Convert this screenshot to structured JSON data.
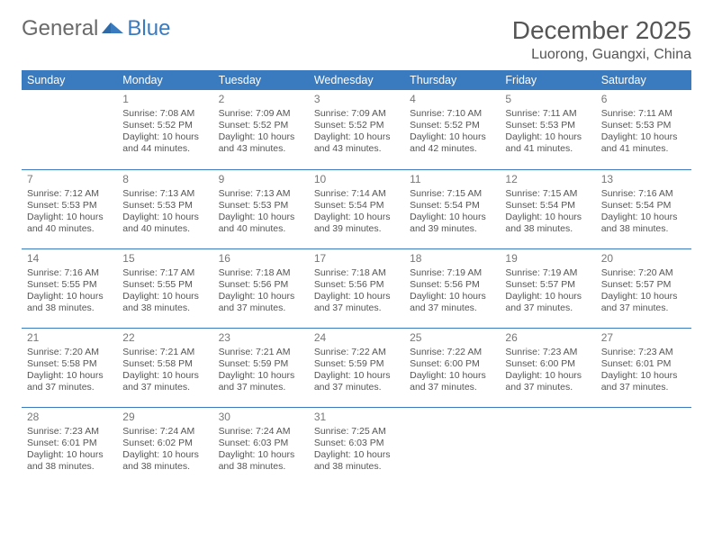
{
  "brand": {
    "part1": "General",
    "part2": "Blue"
  },
  "title": "December 2025",
  "location": "Luorong, Guangxi, China",
  "colors": {
    "header_bg": "#3a7bbf",
    "header_text": "#ffffff",
    "page_bg": "#ffffff",
    "text": "#555555",
    "daynum": "#777777",
    "separator": "#3a7bbf"
  },
  "weekdays": [
    "Sunday",
    "Monday",
    "Tuesday",
    "Wednesday",
    "Thursday",
    "Friday",
    "Saturday"
  ],
  "weeks": [
    [
      null,
      {
        "d": "1",
        "sr": "Sunrise: 7:08 AM",
        "ss": "Sunset: 5:52 PM",
        "dl1": "Daylight: 10 hours",
        "dl2": "and 44 minutes."
      },
      {
        "d": "2",
        "sr": "Sunrise: 7:09 AM",
        "ss": "Sunset: 5:52 PM",
        "dl1": "Daylight: 10 hours",
        "dl2": "and 43 minutes."
      },
      {
        "d": "3",
        "sr": "Sunrise: 7:09 AM",
        "ss": "Sunset: 5:52 PM",
        "dl1": "Daylight: 10 hours",
        "dl2": "and 43 minutes."
      },
      {
        "d": "4",
        "sr": "Sunrise: 7:10 AM",
        "ss": "Sunset: 5:52 PM",
        "dl1": "Daylight: 10 hours",
        "dl2": "and 42 minutes."
      },
      {
        "d": "5",
        "sr": "Sunrise: 7:11 AM",
        "ss": "Sunset: 5:53 PM",
        "dl1": "Daylight: 10 hours",
        "dl2": "and 41 minutes."
      },
      {
        "d": "6",
        "sr": "Sunrise: 7:11 AM",
        "ss": "Sunset: 5:53 PM",
        "dl1": "Daylight: 10 hours",
        "dl2": "and 41 minutes."
      }
    ],
    [
      {
        "d": "7",
        "sr": "Sunrise: 7:12 AM",
        "ss": "Sunset: 5:53 PM",
        "dl1": "Daylight: 10 hours",
        "dl2": "and 40 minutes."
      },
      {
        "d": "8",
        "sr": "Sunrise: 7:13 AM",
        "ss": "Sunset: 5:53 PM",
        "dl1": "Daylight: 10 hours",
        "dl2": "and 40 minutes."
      },
      {
        "d": "9",
        "sr": "Sunrise: 7:13 AM",
        "ss": "Sunset: 5:53 PM",
        "dl1": "Daylight: 10 hours",
        "dl2": "and 40 minutes."
      },
      {
        "d": "10",
        "sr": "Sunrise: 7:14 AM",
        "ss": "Sunset: 5:54 PM",
        "dl1": "Daylight: 10 hours",
        "dl2": "and 39 minutes."
      },
      {
        "d": "11",
        "sr": "Sunrise: 7:15 AM",
        "ss": "Sunset: 5:54 PM",
        "dl1": "Daylight: 10 hours",
        "dl2": "and 39 minutes."
      },
      {
        "d": "12",
        "sr": "Sunrise: 7:15 AM",
        "ss": "Sunset: 5:54 PM",
        "dl1": "Daylight: 10 hours",
        "dl2": "and 38 minutes."
      },
      {
        "d": "13",
        "sr": "Sunrise: 7:16 AM",
        "ss": "Sunset: 5:54 PM",
        "dl1": "Daylight: 10 hours",
        "dl2": "and 38 minutes."
      }
    ],
    [
      {
        "d": "14",
        "sr": "Sunrise: 7:16 AM",
        "ss": "Sunset: 5:55 PM",
        "dl1": "Daylight: 10 hours",
        "dl2": "and 38 minutes."
      },
      {
        "d": "15",
        "sr": "Sunrise: 7:17 AM",
        "ss": "Sunset: 5:55 PM",
        "dl1": "Daylight: 10 hours",
        "dl2": "and 38 minutes."
      },
      {
        "d": "16",
        "sr": "Sunrise: 7:18 AM",
        "ss": "Sunset: 5:56 PM",
        "dl1": "Daylight: 10 hours",
        "dl2": "and 37 minutes."
      },
      {
        "d": "17",
        "sr": "Sunrise: 7:18 AM",
        "ss": "Sunset: 5:56 PM",
        "dl1": "Daylight: 10 hours",
        "dl2": "and 37 minutes."
      },
      {
        "d": "18",
        "sr": "Sunrise: 7:19 AM",
        "ss": "Sunset: 5:56 PM",
        "dl1": "Daylight: 10 hours",
        "dl2": "and 37 minutes."
      },
      {
        "d": "19",
        "sr": "Sunrise: 7:19 AM",
        "ss": "Sunset: 5:57 PM",
        "dl1": "Daylight: 10 hours",
        "dl2": "and 37 minutes."
      },
      {
        "d": "20",
        "sr": "Sunrise: 7:20 AM",
        "ss": "Sunset: 5:57 PM",
        "dl1": "Daylight: 10 hours",
        "dl2": "and 37 minutes."
      }
    ],
    [
      {
        "d": "21",
        "sr": "Sunrise: 7:20 AM",
        "ss": "Sunset: 5:58 PM",
        "dl1": "Daylight: 10 hours",
        "dl2": "and 37 minutes."
      },
      {
        "d": "22",
        "sr": "Sunrise: 7:21 AM",
        "ss": "Sunset: 5:58 PM",
        "dl1": "Daylight: 10 hours",
        "dl2": "and 37 minutes."
      },
      {
        "d": "23",
        "sr": "Sunrise: 7:21 AM",
        "ss": "Sunset: 5:59 PM",
        "dl1": "Daylight: 10 hours",
        "dl2": "and 37 minutes."
      },
      {
        "d": "24",
        "sr": "Sunrise: 7:22 AM",
        "ss": "Sunset: 5:59 PM",
        "dl1": "Daylight: 10 hours",
        "dl2": "and 37 minutes."
      },
      {
        "d": "25",
        "sr": "Sunrise: 7:22 AM",
        "ss": "Sunset: 6:00 PM",
        "dl1": "Daylight: 10 hours",
        "dl2": "and 37 minutes."
      },
      {
        "d": "26",
        "sr": "Sunrise: 7:23 AM",
        "ss": "Sunset: 6:00 PM",
        "dl1": "Daylight: 10 hours",
        "dl2": "and 37 minutes."
      },
      {
        "d": "27",
        "sr": "Sunrise: 7:23 AM",
        "ss": "Sunset: 6:01 PM",
        "dl1": "Daylight: 10 hours",
        "dl2": "and 37 minutes."
      }
    ],
    [
      {
        "d": "28",
        "sr": "Sunrise: 7:23 AM",
        "ss": "Sunset: 6:01 PM",
        "dl1": "Daylight: 10 hours",
        "dl2": "and 38 minutes."
      },
      {
        "d": "29",
        "sr": "Sunrise: 7:24 AM",
        "ss": "Sunset: 6:02 PM",
        "dl1": "Daylight: 10 hours",
        "dl2": "and 38 minutes."
      },
      {
        "d": "30",
        "sr": "Sunrise: 7:24 AM",
        "ss": "Sunset: 6:03 PM",
        "dl1": "Daylight: 10 hours",
        "dl2": "and 38 minutes."
      },
      {
        "d": "31",
        "sr": "Sunrise: 7:25 AM",
        "ss": "Sunset: 6:03 PM",
        "dl1": "Daylight: 10 hours",
        "dl2": "and 38 minutes."
      },
      null,
      null,
      null
    ]
  ]
}
